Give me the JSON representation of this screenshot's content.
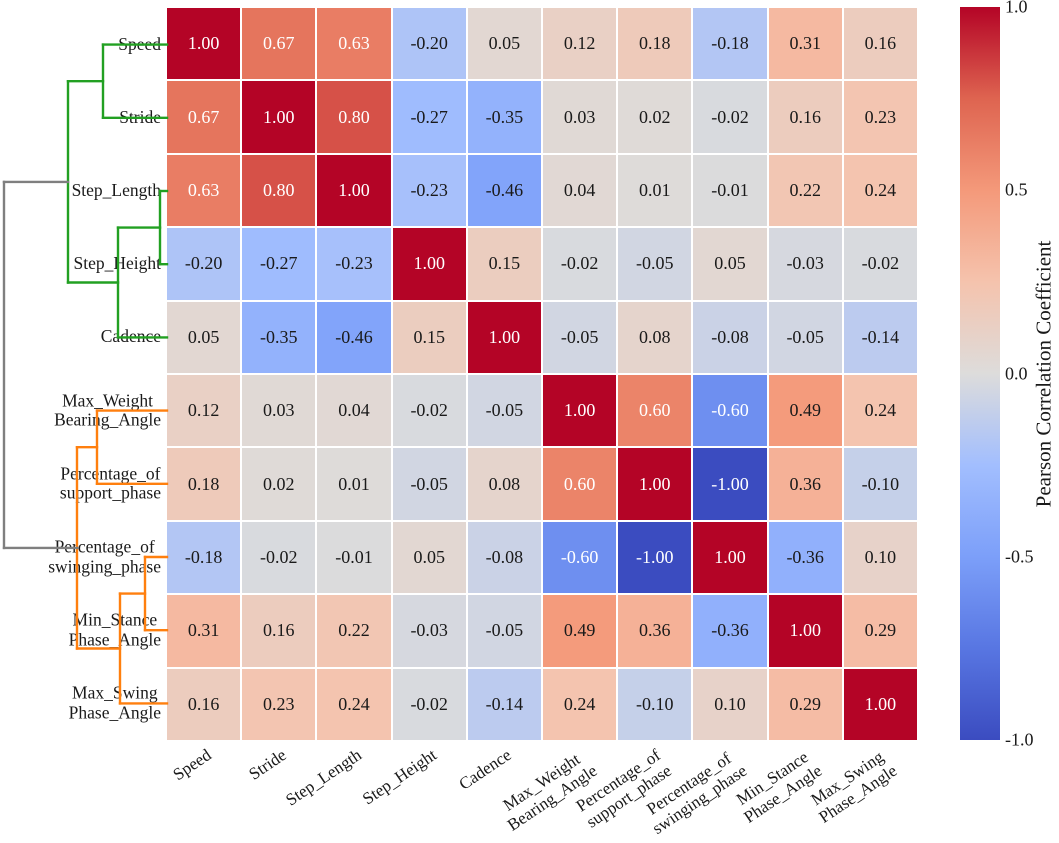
{
  "chart_data": {
    "type": "heatmap",
    "title": "",
    "variables": [
      "Speed",
      "Stride",
      "Step_Length",
      "Step_Height",
      "Cadence",
      "Max_Weight\nBearing_Angle",
      "Percentage_of\nsupport_phase",
      "Percentage_of\nswinging_phase",
      "Min_Stance\nPhase_Angle",
      "Max_Swing\nPhase_Angle"
    ],
    "matrix": [
      [
        1.0,
        0.67,
        0.63,
        -0.2,
        0.05,
        0.12,
        0.18,
        -0.18,
        0.31,
        0.16
      ],
      [
        0.67,
        1.0,
        0.8,
        -0.27,
        -0.35,
        0.03,
        0.02,
        -0.02,
        0.16,
        0.23
      ],
      [
        0.63,
        0.8,
        1.0,
        -0.23,
        -0.46,
        0.04,
        0.01,
        -0.01,
        0.22,
        0.24
      ],
      [
        -0.2,
        -0.27,
        -0.23,
        1.0,
        0.15,
        -0.02,
        -0.05,
        0.05,
        -0.03,
        -0.02
      ],
      [
        0.05,
        -0.35,
        -0.46,
        0.15,
        1.0,
        -0.05,
        0.08,
        -0.08,
        -0.05,
        -0.14
      ],
      [
        0.12,
        0.03,
        0.04,
        -0.02,
        -0.05,
        1.0,
        0.6,
        -0.6,
        0.49,
        0.24
      ],
      [
        0.18,
        0.02,
        0.01,
        -0.05,
        0.08,
        0.6,
        1.0,
        -1.0,
        0.36,
        -0.1
      ],
      [
        -0.18,
        -0.02,
        -0.01,
        0.05,
        -0.08,
        -0.6,
        -1.0,
        1.0,
        -0.36,
        0.1
      ],
      [
        0.31,
        0.16,
        0.22,
        -0.03,
        -0.05,
        0.49,
        0.36,
        -0.36,
        1.0,
        0.29
      ],
      [
        0.16,
        0.23,
        0.24,
        -0.02,
        -0.14,
        0.24,
        -0.1,
        0.1,
        0.29,
        1.0
      ]
    ],
    "vmin": -1,
    "vmax": 1,
    "colormap": {
      "name": "coolwarm",
      "anchors": [
        [
          0.0,
          "#3B4CC0"
        ],
        [
          0.125,
          "#5876E2"
        ],
        [
          0.25,
          "#7C9FF9"
        ],
        [
          0.375,
          "#A2BEFE"
        ],
        [
          0.5,
          "#DDDCDB"
        ],
        [
          0.625,
          "#F5C3AD"
        ],
        [
          0.75,
          "#F4997A"
        ],
        [
          0.875,
          "#DE6450"
        ],
        [
          1.0,
          "#B40426"
        ]
      ]
    },
    "cell_text": {
      "light": "#ffffff",
      "dark": "#1a1a1a",
      "light_threshold": 0.55
    },
    "colorbar": {
      "title": "Pearson Correlation Coefficient",
      "ticks": [
        {
          "label": "1.0",
          "value": 1.0
        },
        {
          "label": "0.5",
          "value": 0.5
        },
        {
          "label": "0.0",
          "value": 0.0
        },
        {
          "label": "-0.5",
          "value": -0.5
        },
        {
          "label": "-1.0",
          "value": -1.0
        }
      ]
    },
    "dendrogram": {
      "colors": {
        "green": "#22a022",
        "orange": "#ff7f0e",
        "gray": "#7f7f7f"
      },
      "segments": [
        {
          "c": "green",
          "pts": [
            103,
            44.6,
            167,
            44.6
          ]
        },
        {
          "c": "green",
          "pts": [
            103,
            117.8,
            167,
            117.8
          ]
        },
        {
          "c": "green",
          "pts": [
            103,
            44.6,
            103,
            117.8
          ]
        },
        {
          "c": "green",
          "pts": [
            68,
            81.2,
            103,
            81.2
          ]
        },
        {
          "c": "green",
          "pts": [
            160,
            191.0,
            167,
            191.0
          ]
        },
        {
          "c": "green",
          "pts": [
            160,
            264.2,
            167,
            264.2
          ]
        },
        {
          "c": "green",
          "pts": [
            160,
            191.0,
            160,
            264.2
          ]
        },
        {
          "c": "green",
          "pts": [
            118,
            227.6,
            160,
            227.6
          ]
        },
        {
          "c": "green",
          "pts": [
            118,
            337.4,
            167,
            337.4
          ]
        },
        {
          "c": "green",
          "pts": [
            118,
            227.6,
            118,
            337.4
          ]
        },
        {
          "c": "green",
          "pts": [
            68,
            282.5,
            118,
            282.5
          ]
        },
        {
          "c": "green",
          "pts": [
            68,
            81.2,
            68,
            282.5
          ]
        },
        {
          "c": "orange",
          "pts": [
            97,
            410.6,
            167,
            410.6
          ]
        },
        {
          "c": "orange",
          "pts": [
            97,
            483.8,
            167,
            483.8
          ]
        },
        {
          "c": "orange",
          "pts": [
            97,
            410.6,
            97,
            483.8
          ]
        },
        {
          "c": "orange",
          "pts": [
            77,
            447.2,
            97,
            447.2
          ]
        },
        {
          "c": "orange",
          "pts": [
            145,
            557.0,
            167,
            557.0
          ]
        },
        {
          "c": "orange",
          "pts": [
            145,
            630.2,
            167,
            630.2
          ]
        },
        {
          "c": "orange",
          "pts": [
            145,
            557.0,
            145,
            630.2
          ]
        },
        {
          "c": "orange",
          "pts": [
            120,
            593.6,
            145,
            593.6
          ]
        },
        {
          "c": "orange",
          "pts": [
            120,
            703.4,
            167,
            703.4
          ]
        },
        {
          "c": "orange",
          "pts": [
            120,
            593.6,
            120,
            703.4
          ]
        },
        {
          "c": "orange",
          "pts": [
            77,
            648.5,
            120,
            648.5
          ]
        },
        {
          "c": "orange",
          "pts": [
            77,
            447.2,
            77,
            648.5
          ]
        },
        {
          "c": "gray",
          "pts": [
            4,
            181.9,
            68,
            181.9
          ]
        },
        {
          "c": "gray",
          "pts": [
            4,
            547.9,
            77,
            547.9
          ]
        },
        {
          "c": "gray",
          "pts": [
            4,
            181.9,
            4,
            547.9
          ]
        }
      ]
    }
  }
}
